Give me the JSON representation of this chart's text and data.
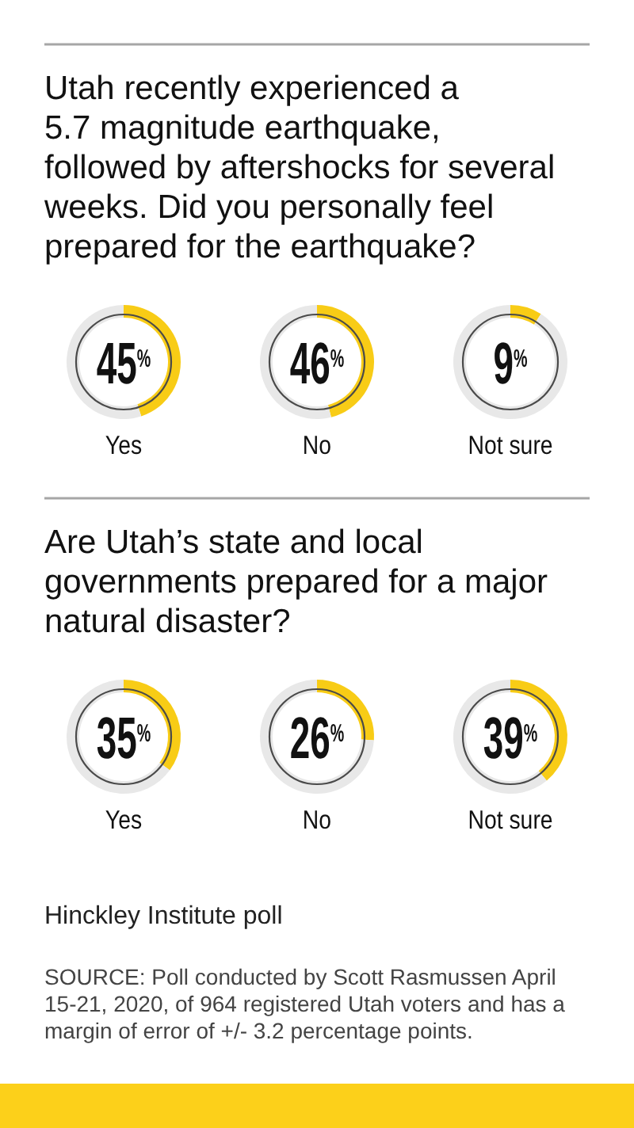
{
  "chart_data": [
    {
      "type": "other",
      "title": "Utah recently experienced a\n5.7 magnitude earthquake,\nfollowed by aftershocks for several\nweeks. Did you personally feel\nprepared for the earthquake?"
    },
    {
      "type": "donut",
      "title": "Yes",
      "categories": [
        null,
        null
      ],
      "values": [
        45,
        55
      ],
      "colors": [
        "#f8cc16",
        "#e8e8e8"
      ],
      "annotations": [
        "45$^{%}$"
      ]
    },
    {
      "type": "donut",
      "title": "No",
      "categories": [
        null,
        null
      ],
      "values": [
        46,
        54
      ],
      "colors": [
        "#f8cc16",
        "#e8e8e8"
      ],
      "annotations": [
        "46$^{%}$"
      ]
    },
    {
      "type": "donut",
      "title": "Not sure",
      "categories": [
        null,
        null
      ],
      "values": [
        9,
        91
      ],
      "colors": [
        "#f8cc16",
        "#e8e8e8"
      ],
      "annotations": [
        "9$^{%}$"
      ]
    },
    {
      "type": "other",
      "title": "Are Utah’s state and local\ngovernments prepared for a major\nnatural disaster?"
    },
    {
      "type": "donut",
      "title": "Yes",
      "categories": [
        null,
        null
      ],
      "values": [
        35,
        65
      ],
      "colors": [
        "#f8cc16",
        "#e8e8e8"
      ],
      "annotations": [
        "35$^{%}$"
      ]
    },
    {
      "type": "donut",
      "title": "No",
      "categories": [
        null,
        null
      ],
      "values": [
        26,
        74
      ],
      "colors": [
        "#f8cc16",
        "#e8e8e8"
      ],
      "annotations": [
        "26$^{%}$"
      ]
    },
    {
      "type": "donut",
      "title": "Not sure",
      "categories": [
        null,
        null
      ],
      "values": [
        39,
        61
      ],
      "colors": [
        "#f8cc16",
        "#e8e8e8"
      ],
      "annotations": [
        "39$^{%}$"
      ]
    },
    {
      "type": "other",
      "annotations": [
        "Hinckley Institute poll",
        "SOURCE: Poll conducted by Scott Rasmussen April 15-21, 2020, of 964 registered Utah voters and has a margin of error of +/- 3.2 percentage points."
      ]
    }
  ]
}
